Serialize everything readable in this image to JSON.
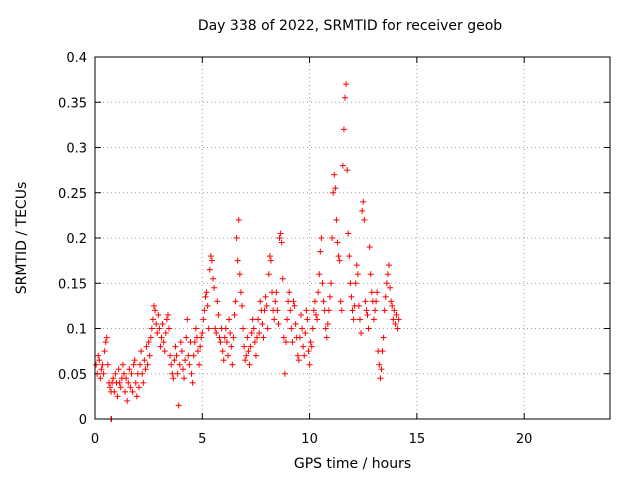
{
  "chart_data": {
    "type": "scatter",
    "title": "Day 338 of 2022, SRMTID for receiver geob",
    "xlabel": "GPS time / hours",
    "ylabel": "SRMTID / TECUs",
    "xlim": [
      0,
      24
    ],
    "ylim": [
      0,
      0.4
    ],
    "xticks": [
      "0",
      "5",
      "10",
      "15",
      "20"
    ],
    "xtick_values": [
      0,
      5,
      10,
      15,
      20
    ],
    "yticks": [
      "0",
      "0.05",
      "0.1",
      "0.15",
      "0.2",
      "0.25",
      "0.3",
      "0.35",
      "0.4"
    ],
    "ytick_values": [
      0,
      0.05,
      0.1,
      0.15,
      0.2,
      0.25,
      0.3,
      0.35,
      0.4
    ],
    "grid": true,
    "marker": "+",
    "color": "#ff0000",
    "series": [
      {
        "name": "SRMTID",
        "points": [
          [
            0.05,
            0.06
          ],
          [
            0.1,
            0.05
          ],
          [
            0.15,
            0.07
          ],
          [
            0.2,
            0.065
          ],
          [
            0.25,
            0.045
          ],
          [
            0.3,
            0.055
          ],
          [
            0.35,
            0.06
          ],
          [
            0.4,
            0.05
          ],
          [
            0.45,
            0.075
          ],
          [
            0.5,
            0.085
          ],
          [
            0.55,
            0.09
          ],
          [
            0.6,
            0.06
          ],
          [
            0.65,
            0.04
          ],
          [
            0.7,
            0.035
          ],
          [
            0.75,
            0.03
          ],
          [
            0.8,
            0.04
          ],
          [
            0.75,
            0.0
          ],
          [
            0.76,
            0.0
          ],
          [
            0.77,
            0.0
          ],
          [
            0.85,
            0.045
          ],
          [
            0.9,
            0.03
          ],
          [
            0.95,
            0.05
          ],
          [
            1.0,
            0.04
          ],
          [
            1.05,
            0.025
          ],
          [
            1.1,
            0.055
          ],
          [
            1.15,
            0.04
          ],
          [
            1.2,
            0.035
          ],
          [
            1.25,
            0.045
          ],
          [
            1.3,
            0.06
          ],
          [
            1.35,
            0.05
          ],
          [
            1.4,
            0.03
          ],
          [
            1.45,
            0.045
          ],
          [
            1.5,
            0.02
          ],
          [
            1.55,
            0.04
          ],
          [
            1.6,
            0.055
          ],
          [
            1.65,
            0.035
          ],
          [
            1.7,
            0.05
          ],
          [
            1.75,
            0.03
          ],
          [
            1.8,
            0.06
          ],
          [
            1.85,
            0.065
          ],
          [
            1.9,
            0.04
          ],
          [
            1.95,
            0.025
          ],
          [
            2.0,
            0.05
          ],
          [
            2.05,
            0.035
          ],
          [
            2.1,
            0.06
          ],
          [
            2.15,
            0.075
          ],
          [
            2.2,
            0.05
          ],
          [
            2.25,
            0.04
          ],
          [
            2.3,
            0.065
          ],
          [
            2.35,
            0.055
          ],
          [
            2.4,
            0.08
          ],
          [
            2.45,
            0.06
          ],
          [
            2.5,
            0.085
          ],
          [
            2.55,
            0.07
          ],
          [
            2.6,
            0.09
          ],
          [
            2.65,
            0.1
          ],
          [
            2.7,
            0.11
          ],
          [
            2.75,
            0.125
          ],
          [
            2.8,
            0.12
          ],
          [
            2.85,
            0.105
          ],
          [
            2.9,
            0.095
          ],
          [
            2.95,
            0.115
          ],
          [
            3.0,
            0.1
          ],
          [
            3.05,
            0.08
          ],
          [
            3.1,
            0.09
          ],
          [
            3.15,
            0.105
          ],
          [
            3.2,
            0.085
          ],
          [
            3.25,
            0.075
          ],
          [
            3.3,
            0.095
          ],
          [
            3.35,
            0.11
          ],
          [
            3.4,
            0.115
          ],
          [
            3.45,
            0.1
          ],
          [
            3.5,
            0.07
          ],
          [
            3.55,
            0.06
          ],
          [
            3.6,
            0.05
          ],
          [
            3.65,
            0.045
          ],
          [
            3.7,
            0.065
          ],
          [
            3.75,
            0.08
          ],
          [
            3.8,
            0.07
          ],
          [
            3.85,
            0.05
          ],
          [
            3.9,
            0.015
          ],
          [
            3.95,
            0.06
          ],
          [
            4.0,
            0.085
          ],
          [
            4.05,
            0.075
          ],
          [
            4.1,
            0.055
          ],
          [
            4.15,
            0.045
          ],
          [
            4.2,
            0.065
          ],
          [
            4.25,
            0.09
          ],
          [
            4.3,
            0.11
          ],
          [
            4.35,
            0.07
          ],
          [
            4.4,
            0.06
          ],
          [
            4.45,
            0.085
          ],
          [
            4.5,
            0.05
          ],
          [
            4.55,
            0.04
          ],
          [
            4.6,
            0.07
          ],
          [
            4.65,
            0.085
          ],
          [
            4.7,
            0.1
          ],
          [
            4.75,
            0.09
          ],
          [
            4.8,
            0.075
          ],
          [
            4.85,
            0.06
          ],
          [
            4.9,
            0.08
          ],
          [
            4.95,
            0.09
          ],
          [
            5.0,
            0.095
          ],
          [
            5.05,
            0.11
          ],
          [
            5.1,
            0.12
          ],
          [
            5.15,
            0.135
          ],
          [
            5.2,
            0.14
          ],
          [
            5.25,
            0.125
          ],
          [
            5.3,
            0.1
          ],
          [
            5.35,
            0.165
          ],
          [
            5.4,
            0.18
          ],
          [
            5.45,
            0.175
          ],
          [
            5.5,
            0.155
          ],
          [
            5.55,
            0.145
          ],
          [
            5.6,
            0.1
          ],
          [
            5.65,
            0.095
          ],
          [
            5.7,
            0.13
          ],
          [
            5.75,
            0.115
          ],
          [
            5.8,
            0.09
          ],
          [
            5.85,
            0.085
          ],
          [
            5.9,
            0.1
          ],
          [
            5.95,
            0.075
          ],
          [
            6.0,
            0.065
          ],
          [
            6.05,
            0.09
          ],
          [
            6.1,
            0.1
          ],
          [
            6.15,
            0.085
          ],
          [
            6.2,
            0.07
          ],
          [
            6.25,
            0.11
          ],
          [
            6.3,
            0.095
          ],
          [
            6.35,
            0.08
          ],
          [
            6.4,
            0.06
          ],
          [
            6.45,
            0.09
          ],
          [
            6.5,
            0.115
          ],
          [
            6.55,
            0.13
          ],
          [
            6.6,
            0.2
          ],
          [
            6.65,
            0.175
          ],
          [
            6.7,
            0.22
          ],
          [
            6.75,
            0.16
          ],
          [
            6.8,
            0.14
          ],
          [
            6.85,
            0.125
          ],
          [
            6.9,
            0.1
          ],
          [
            6.95,
            0.08
          ],
          [
            7.0,
            0.065
          ],
          [
            7.05,
            0.07
          ],
          [
            7.1,
            0.09
          ],
          [
            7.15,
            0.075
          ],
          [
            7.2,
            0.06
          ],
          [
            7.25,
            0.08
          ],
          [
            7.3,
            0.095
          ],
          [
            7.35,
            0.11
          ],
          [
            7.4,
            0.1
          ],
          [
            7.45,
            0.085
          ],
          [
            7.5,
            0.07
          ],
          [
            7.55,
            0.09
          ],
          [
            7.6,
            0.11
          ],
          [
            7.65,
            0.095
          ],
          [
            7.7,
            0.13
          ],
          [
            7.75,
            0.12
          ],
          [
            7.8,
            0.105
          ],
          [
            7.85,
            0.09
          ],
          [
            7.9,
            0.12
          ],
          [
            7.95,
            0.135
          ],
          [
            8.0,
            0.125
          ],
          [
            8.05,
            0.1
          ],
          [
            8.1,
            0.16
          ],
          [
            8.15,
            0.18
          ],
          [
            8.2,
            0.175
          ],
          [
            8.25,
            0.14
          ],
          [
            8.3,
            0.12
          ],
          [
            8.35,
            0.11
          ],
          [
            8.4,
            0.13
          ],
          [
            8.45,
            0.14
          ],
          [
            8.5,
            0.12
          ],
          [
            8.55,
            0.105
          ],
          [
            8.6,
            0.2
          ],
          [
            8.65,
            0.205
          ],
          [
            8.7,
            0.195
          ],
          [
            8.75,
            0.155
          ],
          [
            8.8,
            0.09
          ],
          [
            8.85,
            0.05
          ],
          [
            8.9,
            0.085
          ],
          [
            8.95,
            0.11
          ],
          [
            9.0,
            0.13
          ],
          [
            9.05,
            0.14
          ],
          [
            9.1,
            0.12
          ],
          [
            9.15,
            0.1
          ],
          [
            9.2,
            0.085
          ],
          [
            9.25,
            0.13
          ],
          [
            9.3,
            0.125
          ],
          [
            9.35,
            0.105
          ],
          [
            9.4,
            0.09
          ],
          [
            9.45,
            0.07
          ],
          [
            9.5,
            0.065
          ],
          [
            9.55,
            0.09
          ],
          [
            9.6,
            0.115
          ],
          [
            9.65,
            0.1
          ],
          [
            9.7,
            0.08
          ],
          [
            9.75,
            0.07
          ],
          [
            9.8,
            0.095
          ],
          [
            9.85,
            0.12
          ],
          [
            9.9,
            0.11
          ],
          [
            9.95,
            0.075
          ],
          [
            10.0,
            0.06
          ],
          [
            10.05,
            0.085
          ],
          [
            10.1,
            0.08
          ],
          [
            10.15,
            0.1
          ],
          [
            10.2,
            0.12
          ],
          [
            10.25,
            0.13
          ],
          [
            10.3,
            0.115
          ],
          [
            10.35,
            0.11
          ],
          [
            10.4,
            0.14
          ],
          [
            10.45,
            0.16
          ],
          [
            10.5,
            0.185
          ],
          [
            10.55,
            0.2
          ],
          [
            10.6,
            0.15
          ],
          [
            10.65,
            0.13
          ],
          [
            10.7,
            0.12
          ],
          [
            10.75,
            0.1
          ],
          [
            10.8,
            0.09
          ],
          [
            10.85,
            0.105
          ],
          [
            10.9,
            0.12
          ],
          [
            10.95,
            0.135
          ],
          [
            11.0,
            0.15
          ],
          [
            11.05,
            0.2
          ],
          [
            11.1,
            0.25
          ],
          [
            11.15,
            0.27
          ],
          [
            11.2,
            0.255
          ],
          [
            11.25,
            0.22
          ],
          [
            11.3,
            0.195
          ],
          [
            11.35,
            0.18
          ],
          [
            11.4,
            0.175
          ],
          [
            11.45,
            0.13
          ],
          [
            11.5,
            0.12
          ],
          [
            11.55,
            0.28
          ],
          [
            11.6,
            0.32
          ],
          [
            11.65,
            0.355
          ],
          [
            11.7,
            0.37
          ],
          [
            11.75,
            0.275
          ],
          [
            11.8,
            0.205
          ],
          [
            11.85,
            0.18
          ],
          [
            11.9,
            0.15
          ],
          [
            11.95,
            0.135
          ],
          [
            12.0,
            0.12
          ],
          [
            12.05,
            0.11
          ],
          [
            12.1,
            0.125
          ],
          [
            12.15,
            0.15
          ],
          [
            12.2,
            0.17
          ],
          [
            12.25,
            0.16
          ],
          [
            12.3,
            0.125
          ],
          [
            12.35,
            0.11
          ],
          [
            12.4,
            0.095
          ],
          [
            12.45,
            0.23
          ],
          [
            12.5,
            0.24
          ],
          [
            12.55,
            0.22
          ],
          [
            12.6,
            0.13
          ],
          [
            12.65,
            0.12
          ],
          [
            12.7,
            0.115
          ],
          [
            12.75,
            0.1
          ],
          [
            12.8,
            0.19
          ],
          [
            12.85,
            0.16
          ],
          [
            12.9,
            0.14
          ],
          [
            12.95,
            0.13
          ],
          [
            13.0,
            0.11
          ],
          [
            13.05,
            0.12
          ],
          [
            13.1,
            0.13
          ],
          [
            13.15,
            0.14
          ],
          [
            13.2,
            0.075
          ],
          [
            13.25,
            0.06
          ],
          [
            13.3,
            0.045
          ],
          [
            13.35,
            0.055
          ],
          [
            13.4,
            0.075
          ],
          [
            13.45,
            0.09
          ],
          [
            13.5,
            0.12
          ],
          [
            13.55,
            0.135
          ],
          [
            13.6,
            0.15
          ],
          [
            13.65,
            0.16
          ],
          [
            13.7,
            0.17
          ],
          [
            13.75,
            0.145
          ],
          [
            13.8,
            0.13
          ],
          [
            13.85,
            0.125
          ],
          [
            13.9,
            0.11
          ],
          [
            13.95,
            0.12
          ],
          [
            14.0,
            0.105
          ],
          [
            14.05,
            0.115
          ],
          [
            14.1,
            0.1
          ],
          [
            14.15,
            0.11
          ]
        ]
      }
    ]
  }
}
